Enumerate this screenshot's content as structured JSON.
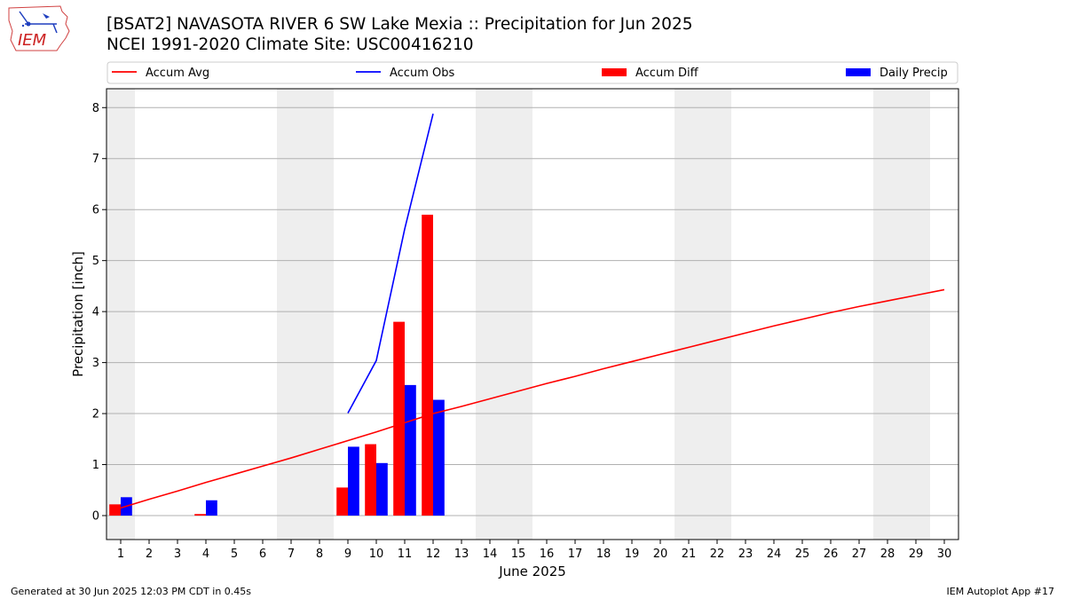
{
  "logo": {
    "text": "IEM"
  },
  "titles": {
    "line1": "[BSAT2] NAVASOTA RIVER 6 SW Lake Mexia :: Precipitation for Jun 2025",
    "line2": "NCEI 1991-2020 Climate Site: USC00416210"
  },
  "footer": {
    "left": "Generated at 30 Jun 2025 12:03 PM CDT in 0.45s",
    "right": "IEM Autoplot App #17"
  },
  "chart_data": {
    "type": "bar",
    "xlabel": "June 2025",
    "ylabel": "Precipitation [inch]",
    "xlim": [
      0.5,
      30.5
    ],
    "ylim": [
      -0.47,
      8.37
    ],
    "yticks": [
      0,
      1,
      2,
      3,
      4,
      5,
      6,
      7,
      8
    ],
    "x": [
      1,
      2,
      3,
      4,
      5,
      6,
      7,
      8,
      9,
      10,
      11,
      12,
      13,
      14,
      15,
      16,
      17,
      18,
      19,
      20,
      21,
      22,
      23,
      24,
      25,
      26,
      27,
      28,
      29,
      30
    ],
    "grid": "horizontal",
    "legend_position": "top",
    "weekend_shading": [
      [
        0.5,
        1.5
      ],
      [
        6.5,
        8.5
      ],
      [
        13.5,
        15.5
      ],
      [
        20.5,
        22.5
      ],
      [
        27.5,
        29.5
      ]
    ],
    "series": [
      {
        "name": "Accum Avg",
        "kind": "line",
        "color": "#ff0000",
        "x": [
          1,
          2,
          3,
          4,
          5,
          6,
          7,
          8,
          9,
          10,
          11,
          12,
          13,
          14,
          15,
          16,
          17,
          18,
          19,
          20,
          21,
          22,
          23,
          24,
          25,
          26,
          27,
          28,
          29,
          30
        ],
        "values": [
          0.15,
          0.32,
          0.48,
          0.65,
          0.81,
          0.97,
          1.13,
          1.3,
          1.47,
          1.64,
          1.82,
          2.0,
          2.14,
          2.29,
          2.44,
          2.59,
          2.73,
          2.88,
          3.02,
          3.16,
          3.3,
          3.44,
          3.58,
          3.72,
          3.85,
          3.98,
          4.1,
          4.21,
          4.32,
          4.43
        ]
      },
      {
        "name": "Accum Obs",
        "kind": "line",
        "color": "#0000ff",
        "x": [
          9,
          10,
          11,
          12
        ],
        "values": [
          2.01,
          3.04,
          5.62,
          7.88
        ]
      },
      {
        "name": "Accum Diff",
        "kind": "bar",
        "color": "#ff0000",
        "x": [
          1,
          4,
          9,
          10,
          11,
          12
        ],
        "values": [
          0.22,
          0.03,
          0.55,
          1.4,
          3.8,
          5.9
        ]
      },
      {
        "name": "Daily Precip",
        "kind": "bar",
        "color": "#0000ff",
        "x": [
          1,
          4,
          9,
          10,
          11,
          12
        ],
        "values": [
          0.36,
          0.3,
          1.35,
          1.03,
          2.56,
          2.27
        ]
      }
    ]
  }
}
